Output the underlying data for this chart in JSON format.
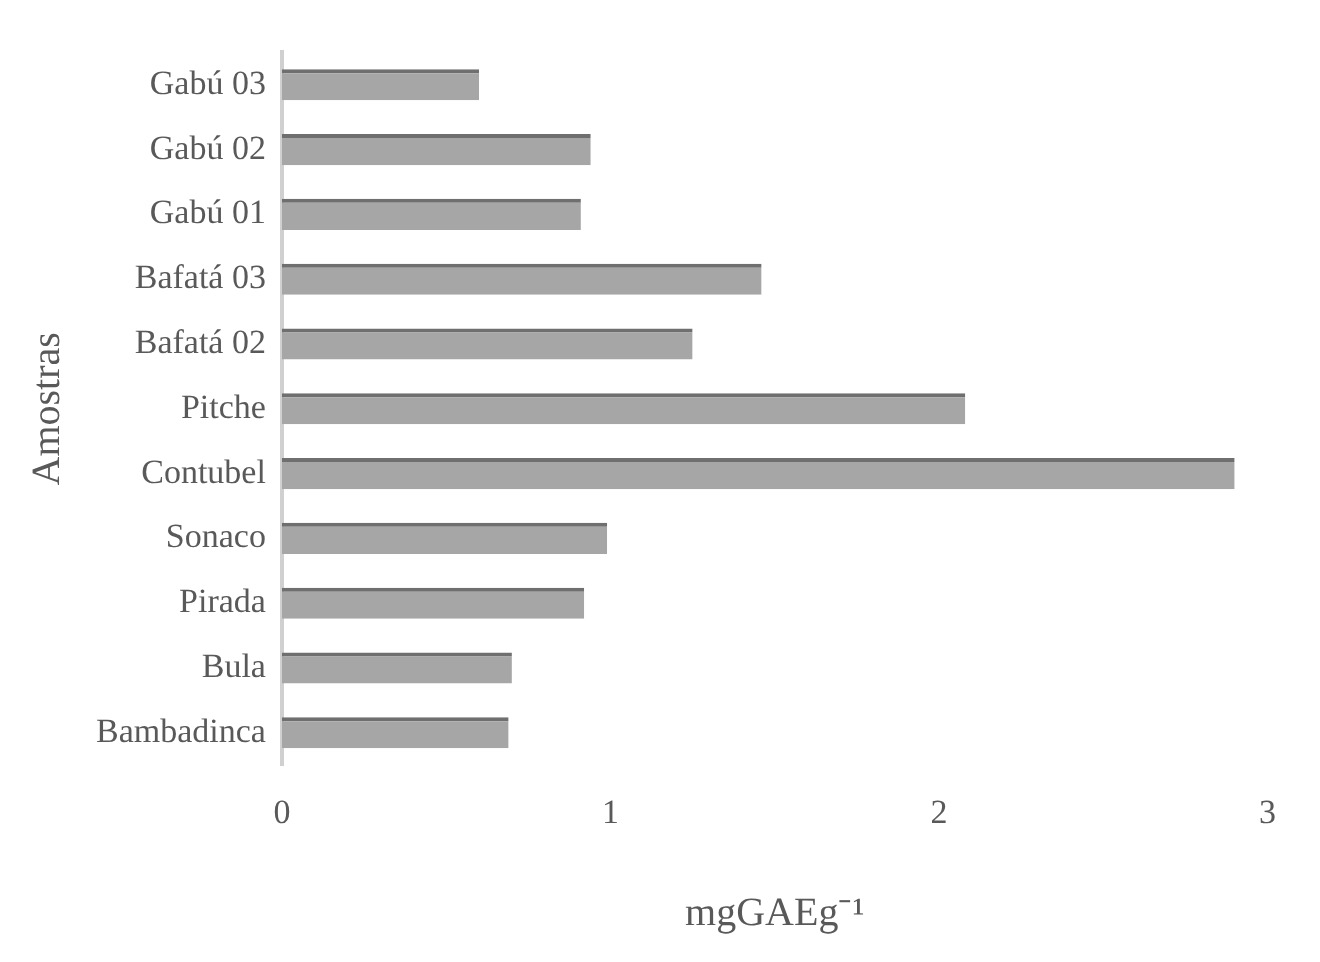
{
  "chart_data": {
    "type": "bar",
    "orientation": "horizontal",
    "xlabel": "mgGAEg⁻¹",
    "ylabel": "Amostras",
    "categories": [
      "Gabú 03",
      "Gabú 02",
      "Gabú 01",
      "Bafatá 03",
      "Bafatá 02",
      "Pitche",
      "Contubel",
      "Sonaco",
      "Pirada",
      "Bula",
      "Bambadinca"
    ],
    "values": [
      0.6,
      0.94,
      0.91,
      1.46,
      1.25,
      2.08,
      2.9,
      0.99,
      0.92,
      0.7,
      0.69
    ],
    "color": "#a6a6a6",
    "xlim": [
      0,
      3
    ],
    "xticks": [
      0,
      1,
      2,
      3
    ],
    "grid": false,
    "legend": false
  }
}
